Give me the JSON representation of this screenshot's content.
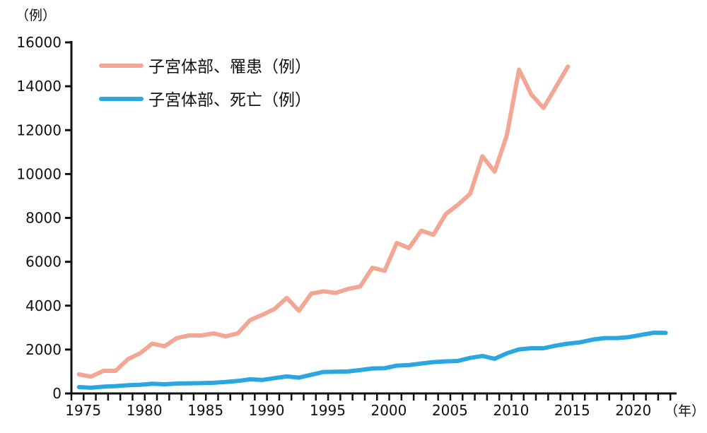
{
  "chart_data": {
    "type": "line",
    "title": "",
    "ylabel": "（例）",
    "xlabel": "（年）",
    "ylim": [
      0,
      16000
    ],
    "yticks": [
      0,
      2000,
      4000,
      6000,
      8000,
      10000,
      12000,
      14000,
      16000
    ],
    "xticks": [
      1975,
      1980,
      1985,
      1990,
      1995,
      2000,
      2005,
      2010,
      2015,
      2020
    ],
    "grid": false,
    "legend_position": "top-left",
    "series": [
      {
        "name": "子宮体部、罹患（例）",
        "color": "#f2a794",
        "x": [
          1975,
          1976,
          1977,
          1978,
          1979,
          1980,
          1981,
          1982,
          1983,
          1984,
          1985,
          1986,
          1987,
          1988,
          1989,
          1990,
          1991,
          1992,
          1993,
          1994,
          1995,
          1996,
          1997,
          1998,
          1999,
          2000,
          2001,
          2002,
          2003,
          2004,
          2005,
          2006,
          2007,
          2008,
          2009,
          2010,
          2011,
          2012,
          2013,
          2014,
          2015
        ],
        "values": [
          870,
          765,
          1030,
          1030,
          1560,
          1830,
          2270,
          2150,
          2520,
          2645,
          2640,
          2740,
          2600,
          2740,
          3345,
          3580,
          3850,
          4355,
          3765,
          4550,
          4655,
          4580,
          4760,
          4870,
          5730,
          5590,
          6860,
          6625,
          7420,
          7235,
          8170,
          8600,
          9100,
          10810,
          10110,
          11770,
          14760,
          13630,
          13010,
          13950,
          14900
        ]
      },
      {
        "name": "子宮体部、死亡（例）",
        "color": "#2aa6e0",
        "x": [
          1975,
          1976,
          1977,
          1978,
          1979,
          1980,
          1981,
          1982,
          1983,
          1984,
          1985,
          1986,
          1987,
          1988,
          1989,
          1990,
          1991,
          1992,
          1993,
          1994,
          1995,
          1996,
          1997,
          1998,
          1999,
          2000,
          2001,
          2002,
          2003,
          2004,
          2005,
          2006,
          2007,
          2008,
          2009,
          2010,
          2011,
          2012,
          2013,
          2014,
          2015,
          2016,
          2017,
          2018,
          2019,
          2020,
          2021,
          2022,
          2023
        ],
        "values": [
          290,
          260,
          310,
          335,
          375,
          395,
          440,
          420,
          450,
          460,
          470,
          485,
          525,
          570,
          645,
          615,
          700,
          775,
          720,
          850,
          980,
          990,
          1000,
          1065,
          1140,
          1150,
          1270,
          1290,
          1365,
          1430,
          1460,
          1480,
          1620,
          1710,
          1580,
          1830,
          2010,
          2060,
          2060,
          2180,
          2270,
          2330,
          2450,
          2525,
          2525,
          2570,
          2670,
          2765,
          2760
        ]
      }
    ]
  }
}
